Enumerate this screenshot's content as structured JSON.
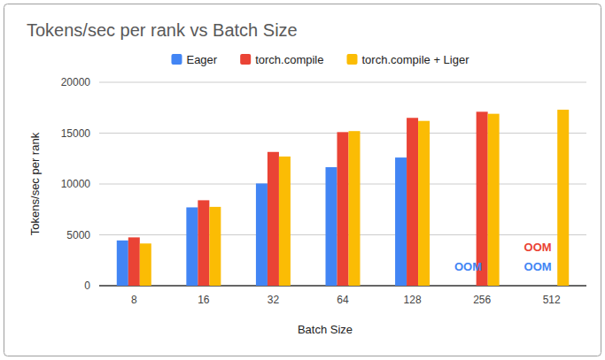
{
  "chart_data": {
    "type": "bar",
    "title": "Tokens/sec per rank vs Batch Size",
    "x_label": "Batch Size",
    "y_label": "Tokens/sec per rank",
    "categories": [
      "8",
      "16",
      "32",
      "64",
      "128",
      "256",
      "512"
    ],
    "series": [
      {
        "name": "Eager",
        "color": "#4285f4",
        "values": [
          4450,
          7700,
          10050,
          11650,
          12600,
          null,
          null
        ]
      },
      {
        "name": "torch.compile",
        "color": "#ea4335",
        "values": [
          4750,
          8400,
          13150,
          15100,
          16500,
          17100,
          null
        ]
      },
      {
        "name": "torch.compile + Liger",
        "color": "#fbbc04",
        "values": [
          4150,
          7750,
          12700,
          15200,
          16200,
          16900,
          17300
        ]
      }
    ],
    "annotations": [
      {
        "text": "OOM",
        "category": "256",
        "series": 0
      },
      {
        "text": "OOM",
        "category": "512",
        "series": 0
      },
      {
        "text": "OOM",
        "category": "512",
        "series": 1
      }
    ],
    "ylim": [
      0,
      20000
    ],
    "yticks": [
      0,
      5000,
      10000,
      15000,
      20000
    ],
    "grid": true,
    "legend": "top",
    "data_labels": false
  }
}
